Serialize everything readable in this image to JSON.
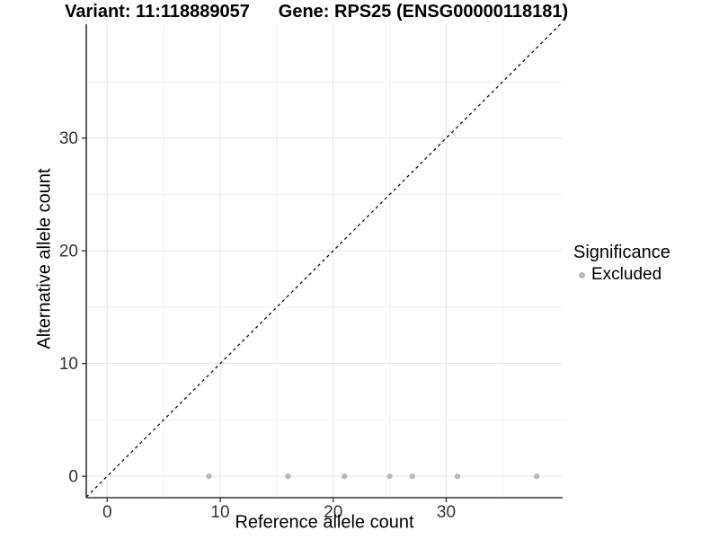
{
  "figure": {
    "title_left": "Variant: 11:118889057",
    "title_right": "Gene: RPS25 (ENSG00000118181)"
  },
  "legend": {
    "title": "Significance",
    "items": [
      {
        "label": "Excluded",
        "color": "#b9b9b9"
      }
    ]
  },
  "chart_data": {
    "type": "scatter",
    "title": "Variant: 11:118889057 | Gene: RPS25 (ENSG00000118181)",
    "xlabel": "Reference allele count",
    "ylabel": "Alternative allele count",
    "xlim": [
      -1.85,
      40.3
    ],
    "ylim": [
      -1.9,
      40.1
    ],
    "x_ticks": [
      0,
      10,
      20,
      30
    ],
    "y_ticks": [
      0,
      10,
      20,
      30
    ],
    "x_minor_ticks": [
      5,
      15,
      25,
      35
    ],
    "y_minor_ticks": [
      5,
      15,
      25,
      35
    ],
    "grid": "major+minor",
    "legend_position": "right",
    "series": [
      {
        "name": "Excluded",
        "color": "#b9b9b9",
        "marker": "circle",
        "points": [
          {
            "x": 9,
            "y": 0
          },
          {
            "x": 16,
            "y": 0
          },
          {
            "x": 21,
            "y": 0
          },
          {
            "x": 25,
            "y": 0
          },
          {
            "x": 27,
            "y": 0
          },
          {
            "x": 31,
            "y": 0
          },
          {
            "x": 38,
            "y": 0
          }
        ]
      }
    ],
    "reference_line": {
      "type": "identity",
      "slope": 1,
      "intercept": 0,
      "style": "dashed",
      "color": "#111111"
    }
  },
  "colors": {
    "background": "#ffffff",
    "major_grid": "#e4e4e4",
    "minor_grid": "#f2f2f2",
    "axis_line": "#333333",
    "tick_mark": "#333333",
    "tick_label": "#333333",
    "point": "#b9b9b9"
  }
}
